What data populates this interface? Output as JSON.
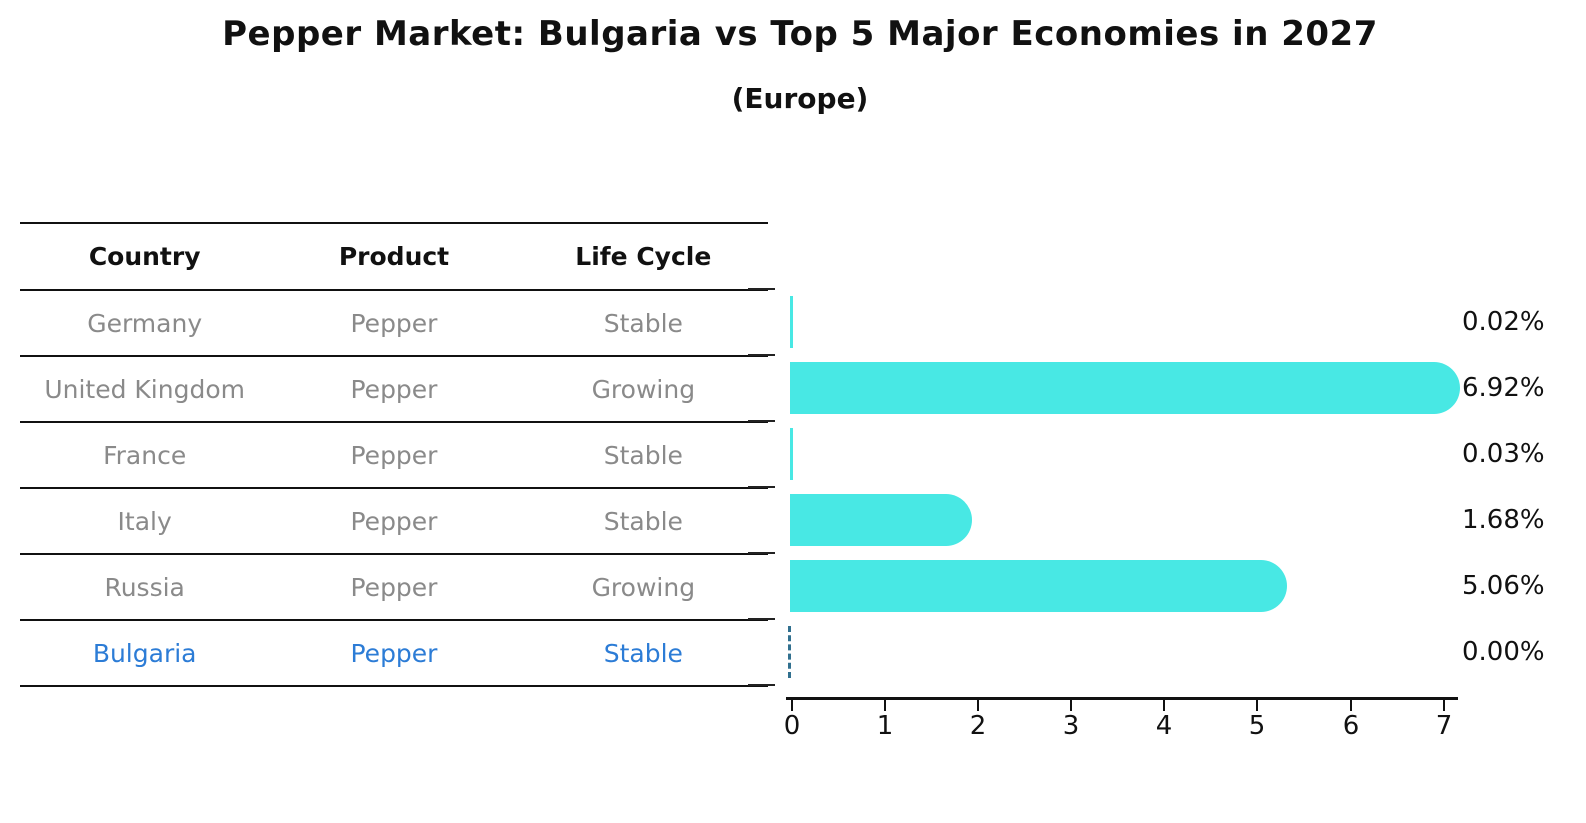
{
  "header": {
    "title": "Pepper Market: Bulgaria vs Top 5 Major Economies in 2027",
    "subtitle": "(Europe)"
  },
  "table": {
    "headers": [
      "Country",
      "Product",
      "Life Cycle"
    ],
    "rows": [
      {
        "country": "Germany",
        "product": "Pepper",
        "life_cycle": "Stable",
        "highlight": false
      },
      {
        "country": "United Kingdom",
        "product": "Pepper",
        "life_cycle": "Growing",
        "highlight": false
      },
      {
        "country": "France",
        "product": "Pepper",
        "life_cycle": "Stable",
        "highlight": false
      },
      {
        "country": "Italy",
        "product": "Pepper",
        "life_cycle": "Stable",
        "highlight": false
      },
      {
        "country": "Russia",
        "product": "Pepper",
        "life_cycle": "Growing",
        "highlight": false
      },
      {
        "country": "Bulgaria",
        "product": "Pepper",
        "life_cycle": "Stable",
        "highlight": true
      }
    ]
  },
  "chart_data": {
    "type": "bar",
    "orientation": "horizontal",
    "title": "Pepper Market: Bulgaria vs Top 5 Major Economies in 2027",
    "subtitle": "(Europe)",
    "categories": [
      "Germany",
      "United Kingdom",
      "France",
      "Italy",
      "Russia",
      "Bulgaria"
    ],
    "values": [
      0.02,
      6.92,
      0.03,
      1.68,
      5.06,
      0.0
    ],
    "value_labels": [
      "0.02%",
      "6.92%",
      "0.03%",
      "1.68%",
      "5.06%",
      "0.00%"
    ],
    "xlabel": "",
    "ylabel": "",
    "xlim": [
      0,
      7
    ],
    "xticks": [
      "0",
      "1",
      "2",
      "3",
      "4",
      "5",
      "6",
      "7"
    ],
    "grid": false,
    "legend": "none",
    "zero_bar_style": "dashed-outline"
  },
  "colors": {
    "bar": "#48e8e4",
    "highlight_text": "#2c7cd6",
    "zero_dash": "#31708f",
    "row_text": "#8a8a8a",
    "axis": "#111111"
  }
}
